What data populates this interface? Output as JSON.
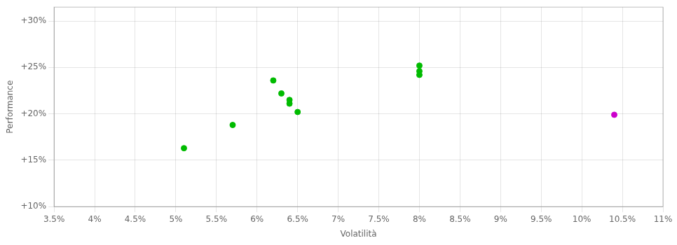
{
  "chart_data": {
    "type": "scatter",
    "xlabel": "Volatilità",
    "ylabel": "Performance",
    "series": [
      {
        "color": "#00bb00",
        "x": [
          0.051,
          0.057,
          0.062,
          0.063,
          0.064,
          0.064,
          0.065,
          0.08,
          0.08,
          0.08
        ],
        "values": [
          0.163,
          0.188,
          0.236,
          0.222,
          0.215,
          0.211,
          0.202,
          0.252,
          0.246,
          0.242
        ]
      },
      {
        "color": "#cc00cc",
        "x": [
          0.104
        ],
        "values": [
          0.199
        ]
      }
    ],
    "xlim": [
      0.035,
      0.11
    ],
    "ylim": [
      0.1,
      0.315
    ],
    "xticks": [
      {
        "value": 0.035,
        "label": "3.5%"
      },
      {
        "value": 0.04,
        "label": "4%"
      },
      {
        "value": 0.045,
        "label": "4.5%"
      },
      {
        "value": 0.05,
        "label": "5%"
      },
      {
        "value": 0.055,
        "label": "5.5%"
      },
      {
        "value": 0.06,
        "label": "6%"
      },
      {
        "value": 0.065,
        "label": "6.5%"
      },
      {
        "value": 0.07,
        "label": "7%"
      },
      {
        "value": 0.075,
        "label": "7.5%"
      },
      {
        "value": 0.08,
        "label": "8%"
      },
      {
        "value": 0.085,
        "label": "8.5%"
      },
      {
        "value": 0.09,
        "label": "9%"
      },
      {
        "value": 0.095,
        "label": "9.5%"
      },
      {
        "value": 0.1,
        "label": "10%"
      },
      {
        "value": 0.105,
        "label": "10.5%"
      },
      {
        "value": 0.11,
        "label": "11%"
      }
    ],
    "yticks": [
      {
        "value": 0.1,
        "label": "+10%"
      },
      {
        "value": 0.15,
        "label": "+15%"
      },
      {
        "value": 0.2,
        "label": "+20%"
      },
      {
        "value": 0.25,
        "label": "+25%"
      },
      {
        "value": 0.3,
        "label": "+30%"
      }
    ],
    "grid": true
  }
}
